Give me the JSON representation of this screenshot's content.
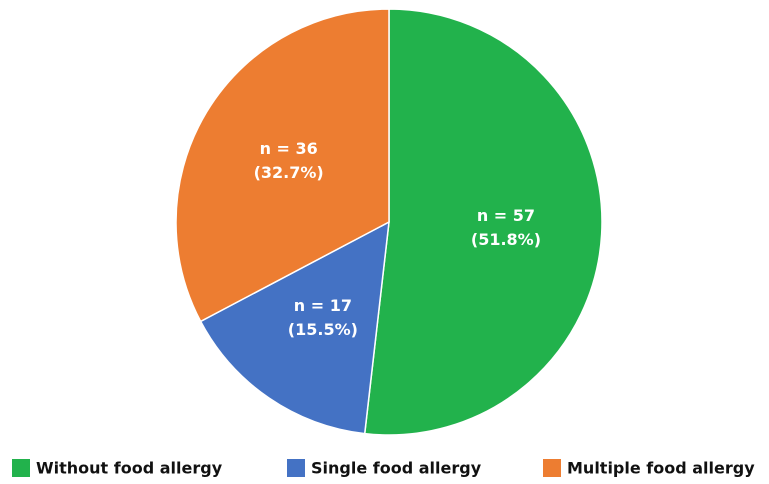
{
  "chart_data": {
    "type": "pie",
    "categories": [
      "Without food allergy",
      "Single food allergy",
      "Multiple food allergy"
    ],
    "values": [
      57,
      17,
      36
    ],
    "value_labels": [
      "n = 57",
      "n = 17",
      "n = 36"
    ],
    "percent_labels": [
      "(51.8%)",
      "(15.5%)",
      "(32.7%)"
    ],
    "colors": [
      "#22b24c",
      "#4472c4",
      "#ed7d31"
    ],
    "legend": "bottom"
  }
}
